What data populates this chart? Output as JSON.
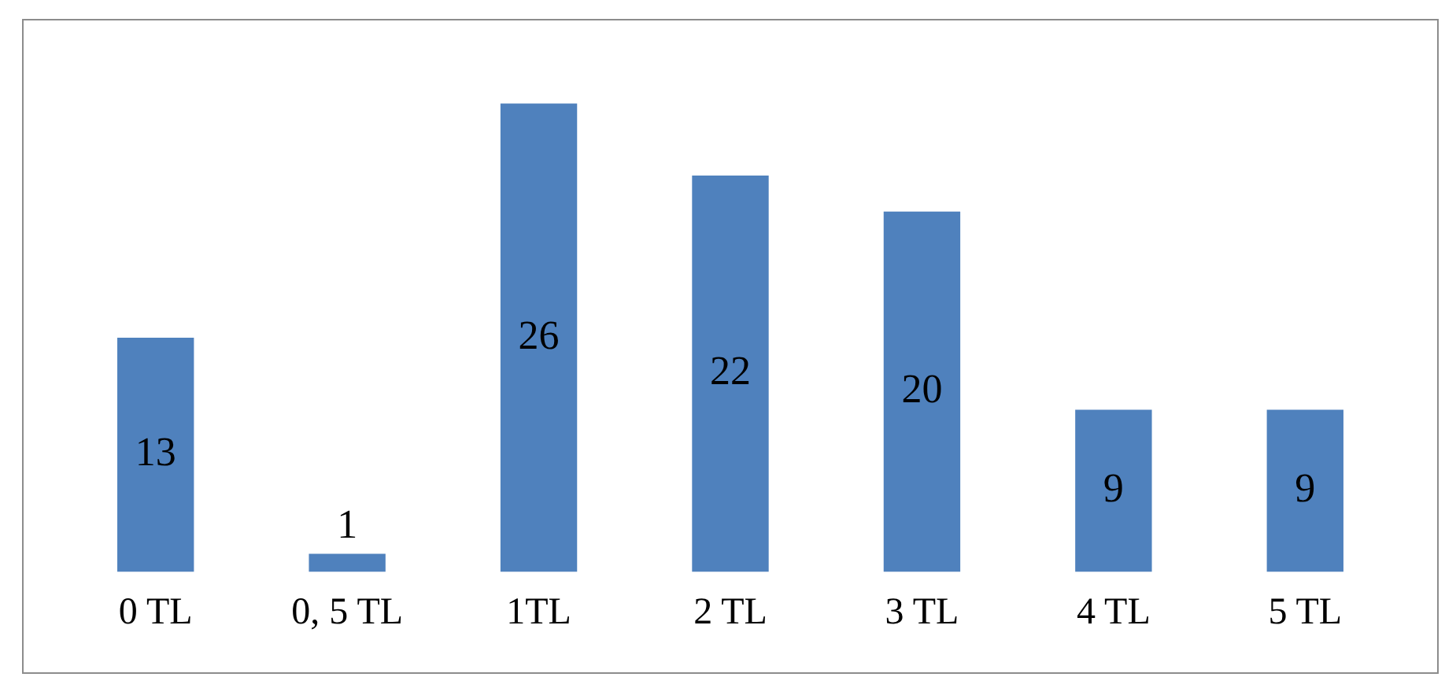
{
  "chart_data": {
    "type": "bar",
    "categories": [
      "0 TL",
      "0, 5 TL",
      "1TL",
      "2 TL",
      "3 TL",
      "4 TL",
      "5 TL"
    ],
    "values": [
      13,
      1,
      26,
      22,
      20,
      9,
      9
    ],
    "color": "#4f81bd",
    "data_labels": true,
    "relative": false,
    "grid": false,
    "legend": false
  }
}
